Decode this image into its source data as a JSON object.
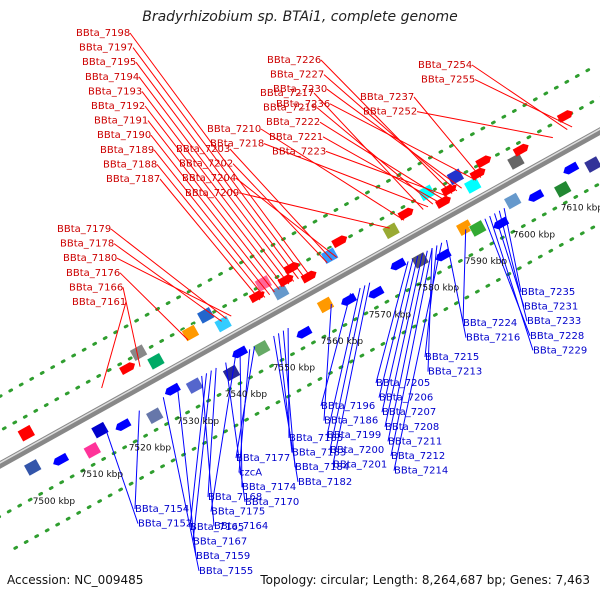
{
  "title": "Bradyrhizobium sp. BTAi1, complete genome",
  "footer": {
    "accession": "Accession: NC_009485",
    "summary": "Topology: circular; Length: 8,264,687 bp; Genes: 7,463"
  },
  "colors": {
    "upper_genes": "#ff0000",
    "lower_genes": "#0000ff",
    "upper_label": "#cc0000",
    "lower_label": "#0000cc",
    "backbone": "#888888",
    "dots": "#2f9e2f"
  },
  "ticks": [
    {
      "label": "7500 kbp",
      "pos": 7500
    },
    {
      "label": "7510 kbp",
      "pos": 7510
    },
    {
      "label": "7520 kbp",
      "pos": 7520
    },
    {
      "label": "7530 kbp",
      "pos": 7530
    },
    {
      "label": "7540 kbp",
      "pos": 7540
    },
    {
      "label": "7550 kbp",
      "pos": 7550
    },
    {
      "label": "7560 kbp",
      "pos": 7560
    },
    {
      "label": "7570 kbp",
      "pos": 7570
    },
    {
      "label": "7580 kbp",
      "pos": 7580
    },
    {
      "label": "7590 kbp",
      "pos": 7590
    },
    {
      "label": "7600 kbp",
      "pos": 7600
    },
    {
      "label": "7610 kbp",
      "pos": 7610
    }
  ],
  "upper_labels": [
    {
      "text": "BBta_7198",
      "pos": 7561
    },
    {
      "text": "BBta_7197",
      "pos": 7560
    },
    {
      "text": "BBta_7195",
      "pos": 7559
    },
    {
      "text": "BBta_7194",
      "pos": 7558
    },
    {
      "text": "BBta_7193",
      "pos": 7557
    },
    {
      "text": "BBta_7192",
      "pos": 7556
    },
    {
      "text": "BBta_7191",
      "pos": 7555
    },
    {
      "text": "BBta_7190",
      "pos": 7554
    },
    {
      "text": "BBta_7189",
      "pos": 7553
    },
    {
      "text": "BBta_7188",
      "pos": 7552
    },
    {
      "text": "BBta_7187",
      "pos": 7551
    },
    {
      "text": "BBta_7179",
      "pos": 7544
    },
    {
      "text": "BBta_7178",
      "pos": 7543
    },
    {
      "text": "BBta_7180",
      "pos": 7545
    },
    {
      "text": "BBta_7176",
      "pos": 7536
    },
    {
      "text": "BBta_7166",
      "pos": 7526
    },
    {
      "text": "BBta_7161",
      "pos": 7518
    },
    {
      "text": "BBta_7203",
      "pos": 7566
    },
    {
      "text": "BBta_7202",
      "pos": 7565
    },
    {
      "text": "BBta_7204",
      "pos": 7567
    },
    {
      "text": "BBta_7209",
      "pos": 7578
    },
    {
      "text": "BBta_7210",
      "pos": 7581
    },
    {
      "text": "BBta_7218",
      "pos": 7586
    },
    {
      "text": "BBta_7217",
      "pos": 7585
    },
    {
      "text": "BBta_7219",
      "pos": 7587
    },
    {
      "text": "BBta_7222",
      "pos": 7589
    },
    {
      "text": "BBta_7221",
      "pos": 7588
    },
    {
      "text": "BBta_7223",
      "pos": 7590
    },
    {
      "text": "BBta_7226",
      "pos": 7591
    },
    {
      "text": "BBta_7227",
      "pos": 7592
    },
    {
      "text": "BBta_7230",
      "pos": 7593
    },
    {
      "text": "BBta_7236",
      "pos": 7596
    },
    {
      "text": "BBta_7237",
      "pos": 7597
    },
    {
      "text": "BBta_7252",
      "pos": 7612
    },
    {
      "text": "BBta_7254",
      "pos": 7615
    },
    {
      "text": "BBta_7255",
      "pos": 7616
    }
  ],
  "lower_labels": [
    {
      "text": "BBta_7235",
      "pos": 7598
    },
    {
      "text": "BBta_7231",
      "pos": 7596
    },
    {
      "text": "BBta_7233",
      "pos": 7597
    },
    {
      "text": "BBta_7228",
      "pos": 7594
    },
    {
      "text": "BBta_7229",
      "pos": 7595
    },
    {
      "text": "BBta_7224",
      "pos": 7590
    },
    {
      "text": "BBta_7216",
      "pos": 7586
    },
    {
      "text": "BBta_7215",
      "pos": 7584
    },
    {
      "text": "BBta_7213",
      "pos": 7583
    },
    {
      "text": "BBta_7205",
      "pos": 7578
    },
    {
      "text": "BBta_7206",
      "pos": 7579
    },
    {
      "text": "BBta_7207",
      "pos": 7580
    },
    {
      "text": "BBta_7208",
      "pos": 7581
    },
    {
      "text": "BBta_7211",
      "pos": 7582
    },
    {
      "text": "BBta_7212",
      "pos": 7583
    },
    {
      "text": "BBta_7214",
      "pos": 7585
    },
    {
      "text": "BBta_7196",
      "pos": 7566
    },
    {
      "text": "BBta_7186",
      "pos": 7562
    },
    {
      "text": "BBta_7199",
      "pos": 7568
    },
    {
      "text": "BBta_7200",
      "pos": 7569
    },
    {
      "text": "BBta_7201",
      "pos": 7570
    },
    {
      "text": "BBta_7185",
      "pos": 7553
    },
    {
      "text": "BBta_7183",
      "pos": 7551
    },
    {
      "text": "BBta_7184",
      "pos": 7552
    },
    {
      "text": "BBta_7182",
      "pos": 7550
    },
    {
      "text": "BBta_7177",
      "pos": 7546
    },
    {
      "text": "czcA",
      "pos": 7545
    },
    {
      "text": "BBta_7174",
      "pos": 7543
    },
    {
      "text": "BBta_7170",
      "pos": 7540
    },
    {
      "text": "BBta_7168",
      "pos": 7538
    },
    {
      "text": "BBta_7175",
      "pos": 7542
    },
    {
      "text": "BBta_7164",
      "pos": 7535
    },
    {
      "text": "BBta_7165",
      "pos": 7536
    },
    {
      "text": "BBta_7167",
      "pos": 7537
    },
    {
      "text": "BBta_7159",
      "pos": 7530
    },
    {
      "text": "BBta_7155",
      "pos": 7527
    },
    {
      "text": "BBta_7154",
      "pos": 7522
    },
    {
      "text": "BBta_7152",
      "pos": 7515
    }
  ],
  "upper_genes": [
    {
      "pos": 7502,
      "type": "rect",
      "color": "#ff0000"
    },
    {
      "pos": 7524,
      "type": "arrow",
      "color": "#ff0000"
    },
    {
      "pos": 7527,
      "type": "rect",
      "color": "#888888"
    },
    {
      "pos": 7529,
      "type": "rect",
      "color": "#00aa66"
    },
    {
      "pos": 7537,
      "type": "rect",
      "color": "#ff9900"
    },
    {
      "pos": 7541,
      "type": "rect",
      "color": "#2266cc"
    },
    {
      "pos": 7543,
      "type": "rect",
      "color": "#33ccff"
    },
    {
      "pos": 7551,
      "type": "arrow",
      "color": "#ff0000"
    },
    {
      "pos": 7553,
      "type": "rect",
      "color": "#ff6699"
    },
    {
      "pos": 7555,
      "type": "rect",
      "color": "#6699cc"
    },
    {
      "pos": 7557,
      "type": "arrow",
      "color": "#ff0000"
    },
    {
      "pos": 7559,
      "type": "arrow",
      "color": "#ff0000"
    },
    {
      "pos": 7561,
      "type": "arrow",
      "color": "#ff0000"
    },
    {
      "pos": 7566,
      "type": "rect",
      "color": "#3399ff"
    },
    {
      "pos": 7569,
      "type": "arrow",
      "color": "#ff0000"
    },
    {
      "pos": 7578,
      "type": "rect",
      "color": "#99aa33"
    },
    {
      "pos": 7582,
      "type": "arrow",
      "color": "#ff0000"
    },
    {
      "pos": 7587,
      "type": "rect",
      "color": "#00ffff"
    },
    {
      "pos": 7589,
      "type": "arrow",
      "color": "#ff0000"
    },
    {
      "pos": 7591,
      "type": "arrow",
      "color": "#ff0000"
    },
    {
      "pos": 7593,
      "type": "rect",
      "color": "#2233cc"
    },
    {
      "pos": 7595,
      "type": "rect",
      "color": "#00ffff"
    },
    {
      "pos": 7597,
      "type": "arrow",
      "color": "#ff0000"
    },
    {
      "pos": 7599,
      "type": "arrow",
      "color": "#ff0000"
    },
    {
      "pos": 7604,
      "type": "rect",
      "color": "#666666"
    },
    {
      "pos": 7606,
      "type": "arrow",
      "color": "#ff0000"
    },
    {
      "pos": 7616,
      "type": "arrow",
      "color": "#ff0000"
    }
  ],
  "lower_genes": [
    {
      "pos": 7500,
      "type": "rect",
      "color": "#3355aa"
    },
    {
      "pos": 7505,
      "type": "arrow",
      "color": "#0000ff"
    },
    {
      "pos": 7511,
      "type": "rect",
      "color": "#ff3399"
    },
    {
      "pos": 7514,
      "type": "rect",
      "color": "#0000cc"
    },
    {
      "pos": 7518,
      "type": "arrow",
      "color": "#0000ff"
    },
    {
      "pos": 7524,
      "type": "rect",
      "color": "#6677aa"
    },
    {
      "pos": 7529,
      "type": "arrow",
      "color": "#0000ff"
    },
    {
      "pos": 7533,
      "type": "rect",
      "color": "#5566cc"
    },
    {
      "pos": 7540,
      "type": "rect",
      "color": "#2a2a99"
    },
    {
      "pos": 7543,
      "type": "arrow",
      "color": "#0000ff"
    },
    {
      "pos": 7547,
      "type": "rect",
      "color": "#66aa66"
    },
    {
      "pos": 7555,
      "type": "arrow",
      "color": "#0000ff"
    },
    {
      "pos": 7561,
      "type": "rect",
      "color": "#ff9900"
    },
    {
      "pos": 7565,
      "type": "arrow",
      "color": "#0000ff"
    },
    {
      "pos": 7570,
      "type": "arrow",
      "color": "#0000ff"
    },
    {
      "pos": 7576,
      "type": "arrow",
      "color": "#0000ff"
    },
    {
      "pos": 7580,
      "type": "rect",
      "color": "#555566"
    },
    {
      "pos": 7584,
      "type": "arrow",
      "color": "#0000ff"
    },
    {
      "pos": 7590,
      "type": "rect",
      "color": "#ff9900"
    },
    {
      "pos": 7592,
      "type": "rect",
      "color": "#33aa33"
    },
    {
      "pos": 7596,
      "type": "arrow",
      "color": "#0000ff"
    },
    {
      "pos": 7600,
      "type": "rect",
      "color": "#6699cc"
    },
    {
      "pos": 7604,
      "type": "arrow",
      "color": "#0000ff"
    },
    {
      "pos": 7609,
      "type": "rect",
      "color": "#228833"
    },
    {
      "pos": 7612,
      "type": "arrow",
      "color": "#0000ff"
    },
    {
      "pos": 7616,
      "type": "rect",
      "color": "#333399"
    }
  ]
}
